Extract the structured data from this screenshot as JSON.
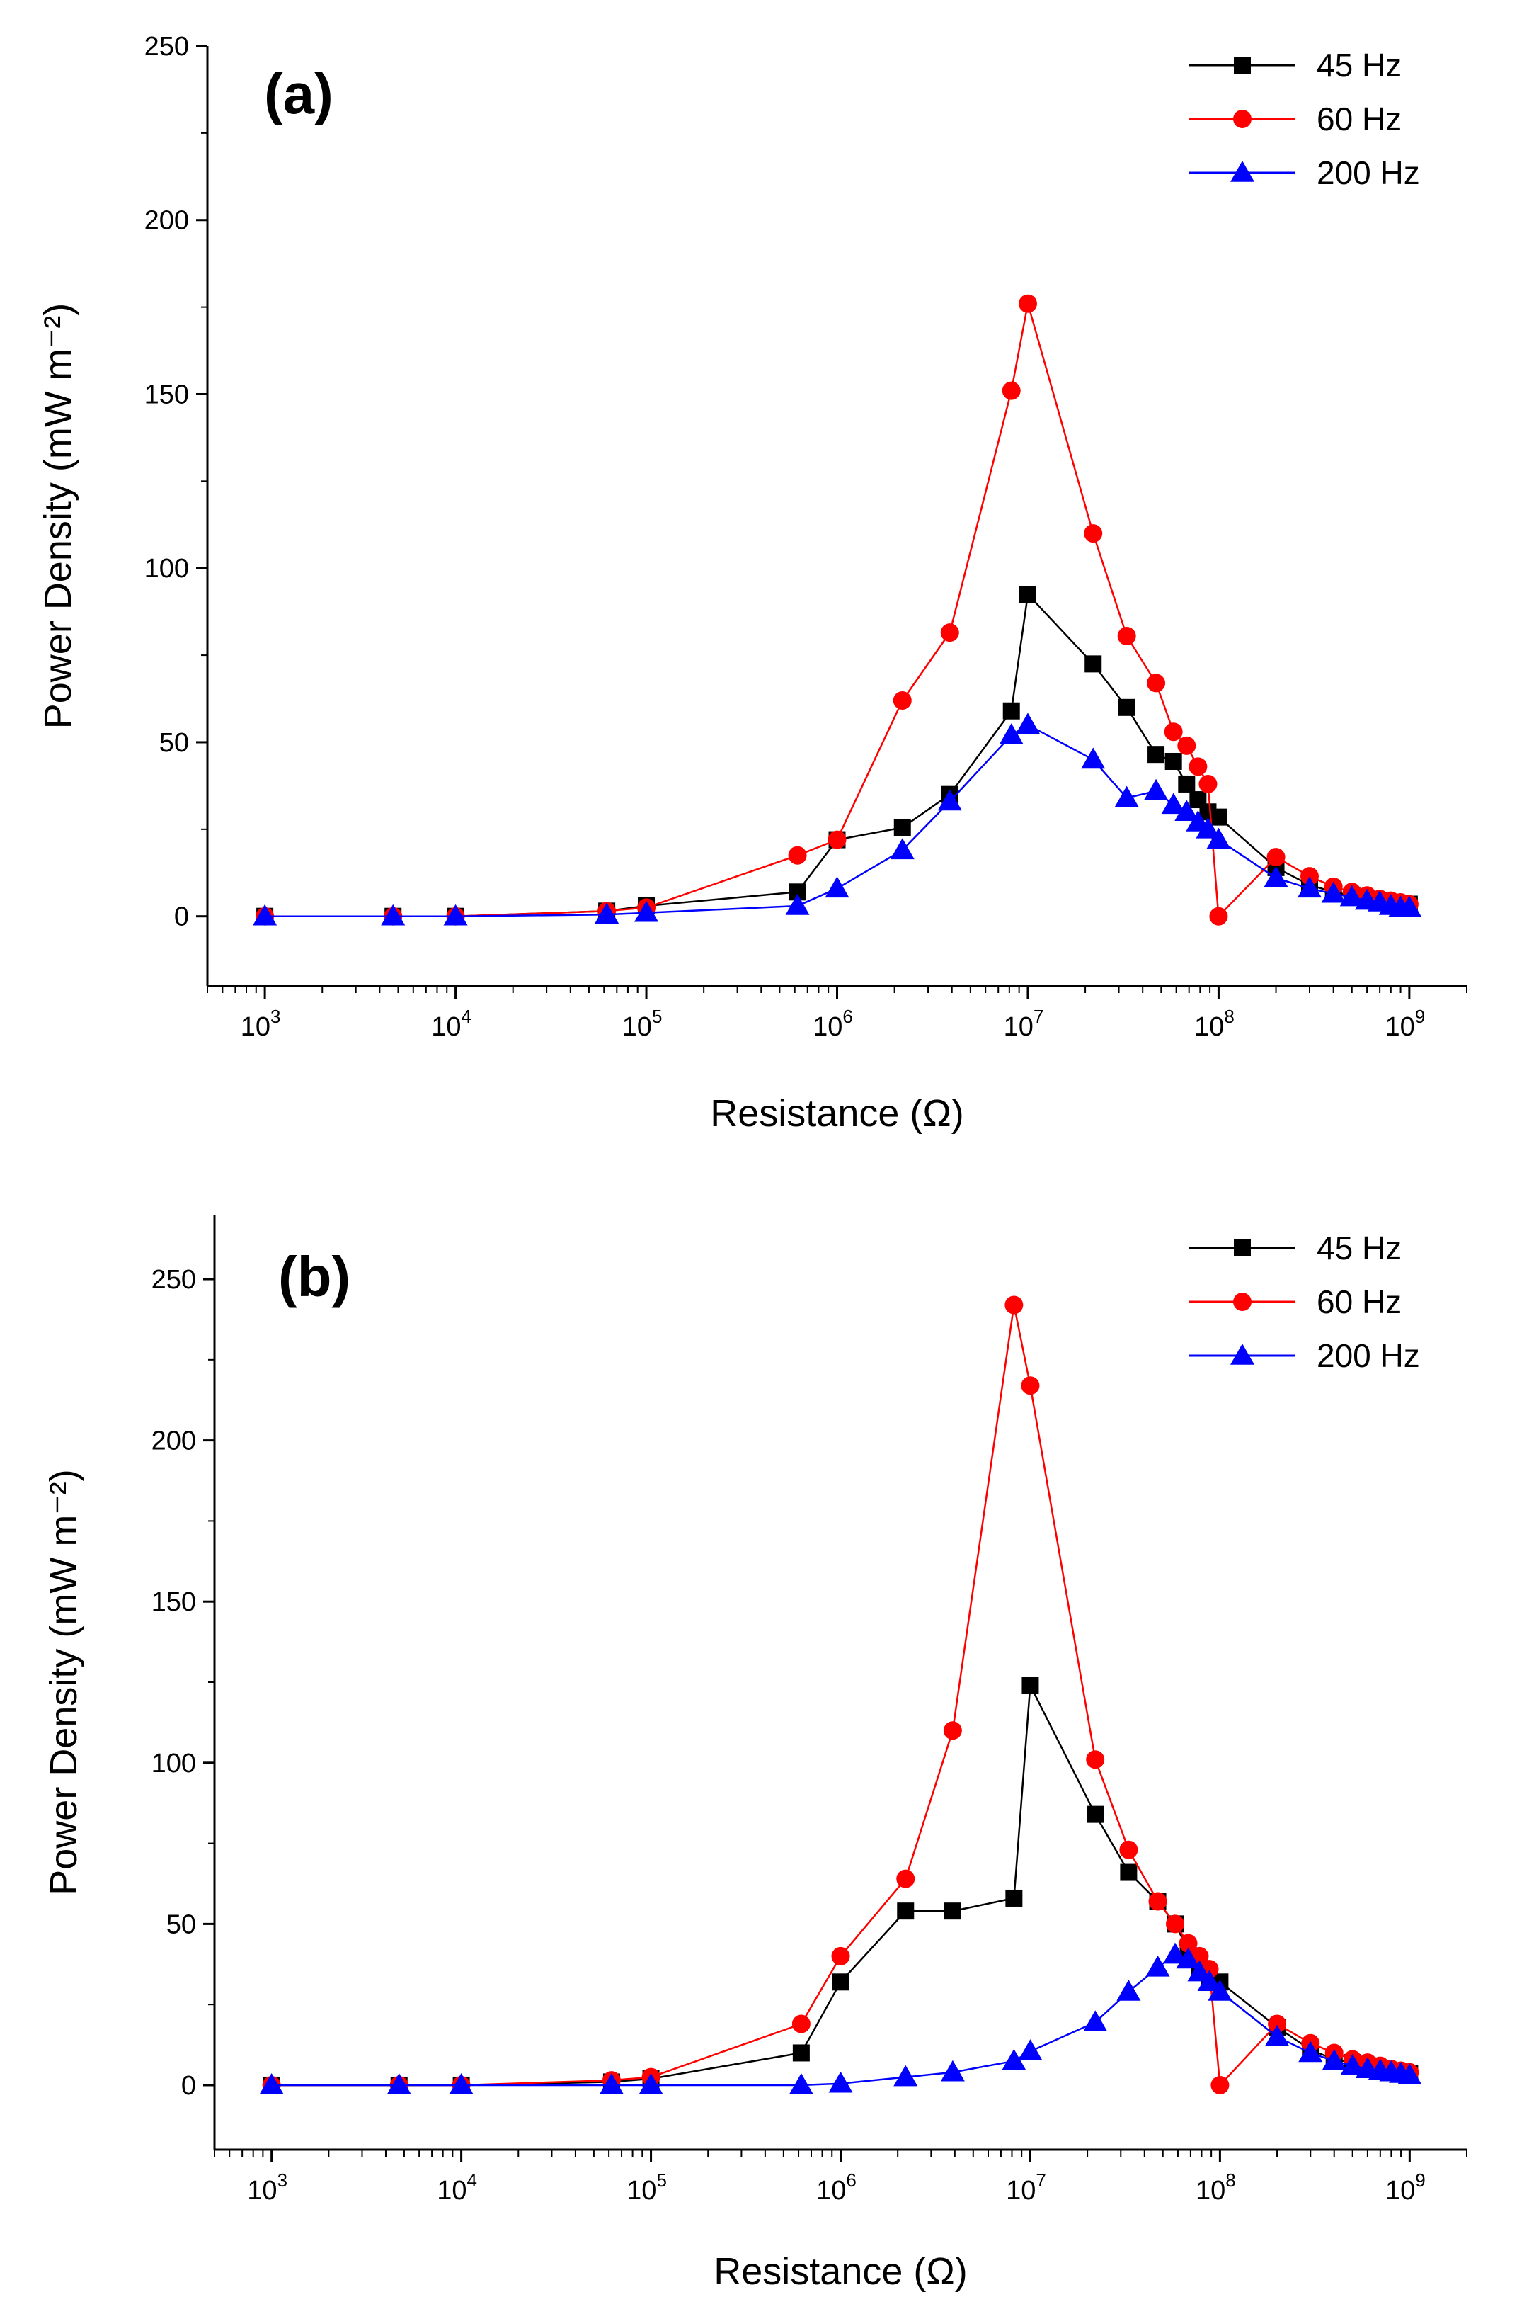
{
  "chart_data": [
    {
      "type": "line",
      "panel": "(a)",
      "xlabel": "Resistance (Ω)",
      "ylabel": "Power Density (mW m⁻²)",
      "xscale": "log",
      "xlim": [
        500,
        2000000000
      ],
      "ylim": [
        -20,
        250
      ],
      "xticks": [
        {
          "value": 1000,
          "base": "10",
          "exp": "3"
        },
        {
          "value": 10000,
          "base": "10",
          "exp": "4"
        },
        {
          "value": 100000,
          "base": "10",
          "exp": "5"
        },
        {
          "value": 1000000,
          "base": "10",
          "exp": "6"
        },
        {
          "value": 10000000,
          "base": "10",
          "exp": "7"
        },
        {
          "value": 100000000,
          "base": "10",
          "exp": "8"
        },
        {
          "value": 1000000000,
          "base": "10",
          "exp": "9"
        }
      ],
      "yticks": [
        0,
        50,
        100,
        150,
        200,
        250
      ],
      "legend_position": "top-right",
      "x": [
        1000,
        4700,
        10000,
        62000,
        100000,
        620000,
        1000000,
        2200000,
        3900000,
        8200000,
        10000000,
        22000000,
        33000000,
        47000000,
        58000000,
        68000000,
        78000000,
        88000000,
        100000000,
        200000000,
        300000000,
        400000000,
        500000000,
        600000000,
        700000000,
        800000000,
        900000000,
        1000000000
      ],
      "series": [
        {
          "name": "45 Hz",
          "color": "#000000",
          "marker": "square",
          "values": [
            0,
            0,
            0,
            1.5,
            3,
            7,
            22,
            25.5,
            35,
            59,
            92.5,
            72.5,
            60,
            46.5,
            44.5,
            38,
            33.5,
            30,
            28.5,
            14,
            9,
            7,
            6,
            5,
            4.5,
            4,
            3.5,
            3.5
          ]
        },
        {
          "name": "60 Hz",
          "color": "#ff0000",
          "marker": "circle",
          "values": [
            0,
            0,
            0,
            1.5,
            2.5,
            17.5,
            22,
            62,
            81.5,
            151,
            176,
            110,
            80.5,
            67,
            53,
            49,
            43,
            38,
            0,
            17,
            11.5,
            8.5,
            7,
            6,
            5,
            4.5,
            4,
            3.5
          ]
        },
        {
          "name": "200 Hz",
          "color": "#0000ff",
          "marker": "triangle",
          "values": [
            0,
            0,
            0,
            0.5,
            1,
            3,
            8,
            19,
            33,
            52,
            55,
            45,
            34,
            36,
            32,
            30,
            27,
            25,
            22,
            11,
            8,
            6.5,
            5.5,
            4.5,
            4,
            3,
            2.5,
            2.5
          ]
        }
      ]
    },
    {
      "type": "line",
      "panel": "(b)",
      "xlabel": "Resistance (Ω)",
      "ylabel": "Power Density (mW m⁻²)",
      "xscale": "log",
      "xlim": [
        500,
        2000000000
      ],
      "ylim": [
        -20,
        270
      ],
      "xticks": [
        {
          "value": 1000,
          "base": "10",
          "exp": "3"
        },
        {
          "value": 10000,
          "base": "10",
          "exp": "4"
        },
        {
          "value": 100000,
          "base": "10",
          "exp": "5"
        },
        {
          "value": 1000000,
          "base": "10",
          "exp": "6"
        },
        {
          "value": 10000000,
          "base": "10",
          "exp": "7"
        },
        {
          "value": 100000000,
          "base": "10",
          "exp": "8"
        },
        {
          "value": 1000000000,
          "base": "10",
          "exp": "9"
        }
      ],
      "yticks": [
        0,
        50,
        100,
        150,
        200,
        250
      ],
      "legend_position": "top-right",
      "x": [
        1000,
        4700,
        10000,
        62000,
        100000,
        620000,
        1000000,
        2200000,
        3900000,
        8200000,
        10000000,
        22000000,
        33000000,
        47000000,
        58000000,
        68000000,
        78000000,
        88000000,
        100000000,
        200000000,
        300000000,
        400000000,
        500000000,
        600000000,
        700000000,
        800000000,
        900000000,
        1000000000
      ],
      "series": [
        {
          "name": "45 Hz",
          "color": "#000000",
          "marker": "square",
          "values": [
            0,
            0,
            0,
            1,
            2,
            10,
            32,
            54,
            54,
            58,
            124,
            84,
            66,
            57,
            50,
            42,
            37,
            34,
            32,
            18,
            11,
            8,
            7,
            6,
            5,
            4.5,
            4,
            3.5
          ]
        },
        {
          "name": "60 Hz",
          "color": "#ff0000",
          "marker": "circle",
          "values": [
            0,
            0,
            0,
            1.5,
            2.5,
            19,
            40,
            64,
            110,
            242,
            217,
            101,
            73,
            57,
            50,
            44,
            40,
            36,
            0,
            19,
            13,
            10,
            8,
            7,
            6,
            5,
            4.5,
            4
          ]
        },
        {
          "name": "200 Hz",
          "color": "#0000ff",
          "marker": "triangle",
          "values": [
            0,
            0,
            0,
            0,
            0,
            0,
            0.5,
            2.5,
            4,
            7.5,
            10.5,
            19.5,
            29,
            36.5,
            40.5,
            39,
            35,
            32,
            29,
            15,
            10,
            7.5,
            6,
            5,
            4.5,
            4,
            3.5,
            3
          ]
        }
      ]
    }
  ]
}
